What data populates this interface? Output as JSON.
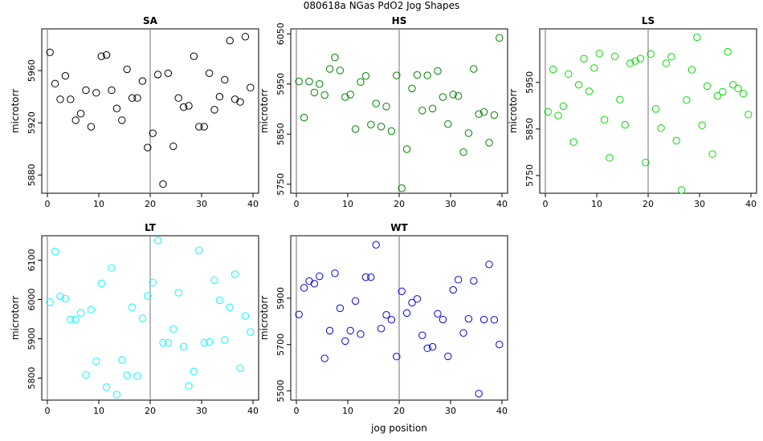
{
  "title": "080618a   NGas PdO2 Jog Shapes",
  "xlabel": "jog position",
  "chart_data": [
    {
      "type": "scatter",
      "title": "SA",
      "ylabel": "microtorr",
      "color": "#000000",
      "xlim": [
        0,
        40
      ],
      "ylim": [
        5866,
        5992
      ],
      "xticks": [
        0,
        10,
        20,
        30,
        40
      ],
      "yticks": [
        5880,
        5920,
        5960
      ],
      "vlines": [
        0,
        20
      ],
      "x": [
        0.5,
        1.5,
        2.5,
        3.5,
        4.5,
        5.5,
        6.5,
        7.5,
        8.5,
        9.5,
        10.5,
        11.5,
        12.5,
        13.5,
        14.5,
        15.5,
        16.5,
        17.5,
        18.5,
        19.5,
        20.5,
        21.5,
        22.5,
        23.5,
        24.5,
        25.5,
        26.5,
        27.5,
        28.5,
        29.5,
        30.5,
        31.5,
        32.5,
        33.5,
        34.5,
        35.5,
        36.5,
        37.5,
        38.5,
        39.5
      ],
      "y": [
        5974,
        5950,
        5938,
        5956,
        5938,
        5922,
        5927,
        5945,
        5917,
        5943,
        5971,
        5972,
        5945,
        5931,
        5922,
        5961,
        5939,
        5939,
        5952,
        5901,
        5912,
        5957,
        5873,
        5958,
        5902,
        5939,
        5932,
        5933,
        5971,
        5917,
        5917,
        5958,
        5930,
        5940,
        5953,
        5983,
        5938,
        5936,
        5986,
        5947
      ]
    },
    {
      "type": "scatter",
      "title": "HS",
      "ylabel": "microtorr",
      "color": "#008000",
      "xlim": [
        0,
        40
      ],
      "ylim": [
        5732,
        6060
      ],
      "xticks": [
        0,
        10,
        20,
        30,
        40
      ],
      "yticks": [
        5750,
        5850,
        5950,
        6050
      ],
      "vlines": [
        0,
        20
      ],
      "x": [
        0.5,
        1.5,
        2.5,
        3.5,
        4.5,
        5.5,
        6.5,
        7.5,
        8.5,
        9.5,
        10.5,
        11.5,
        12.5,
        13.5,
        14.5,
        15.5,
        16.5,
        17.5,
        18.5,
        19.5,
        20.5,
        21.5,
        22.5,
        23.5,
        24.5,
        25.5,
        26.5,
        27.5,
        28.5,
        29.5,
        30.5,
        31.5,
        32.5,
        33.5,
        34.5,
        35.5,
        36.5,
        37.5,
        38.5,
        39.5
      ],
      "y": [
        5955,
        5883,
        5955,
        5933,
        5950,
        5928,
        5980,
        6003,
        5977,
        5924,
        5929,
        5860,
        5954,
        5966,
        5869,
        5911,
        5865,
        5905,
        5856,
        5967,
        5742,
        5820,
        5941,
        5968,
        5897,
        5967,
        5901,
        5976,
        5924,
        5870,
        5929,
        5926,
        5814,
        5852,
        5980,
        5890,
        5894,
        5833,
        5888,
        6042
      ]
    },
    {
      "type": "scatter",
      "title": "LS",
      "ylabel": "microtorr",
      "color": "#00dd00",
      "xlim": [
        0,
        40
      ],
      "ylim": [
        5712,
        6065
      ],
      "xticks": [
        0,
        10,
        20,
        30,
        40
      ],
      "yticks": [
        5750,
        5850,
        5950
      ],
      "vlines": [
        0,
        20
      ],
      "x": [
        0.5,
        1.5,
        2.5,
        3.5,
        4.5,
        5.5,
        6.5,
        7.5,
        8.5,
        9.5,
        10.5,
        11.5,
        12.5,
        13.5,
        14.5,
        15.5,
        16.5,
        17.5,
        18.5,
        19.5,
        20.5,
        21.5,
        22.5,
        23.5,
        24.5,
        25.5,
        26.5,
        27.5,
        28.5,
        29.5,
        30.5,
        31.5,
        32.5,
        33.5,
        34.5,
        35.5,
        36.5,
        37.5,
        38.5,
        39.5
      ],
      "y": [
        5887,
        5978,
        5879,
        5899,
        5968,
        5822,
        5945,
        6001,
        5931,
        5981,
        6012,
        5870,
        5788,
        6006,
        5913,
        5859,
        5991,
        5996,
        6001,
        5778,
        6011,
        5893,
        5852,
        5991,
        6005,
        5825,
        5719,
        5912,
        5977,
        6047,
        5858,
        5942,
        5796,
        5921,
        5930,
        6016,
        5945,
        5937,
        5926,
        5881
      ]
    },
    {
      "type": "scatter",
      "title": "LT",
      "ylabel": "microtorr",
      "color": "#00ffff",
      "xlim": [
        0,
        40
      ],
      "ylim": [
        5744,
        6162
      ],
      "xticks": [
        0,
        10,
        20,
        30,
        40
      ],
      "yticks": [
        5800,
        5900,
        6000,
        6100
      ],
      "vlines": [
        0,
        20
      ],
      "x": [
        0.5,
        1.5,
        2.5,
        3.5,
        4.5,
        5.5,
        6.5,
        7.5,
        8.5,
        9.5,
        10.5,
        11.5,
        12.5,
        13.5,
        14.5,
        15.5,
        16.5,
        17.5,
        18.5,
        19.5,
        20.5,
        21.5,
        22.5,
        23.5,
        24.5,
        25.5,
        26.5,
        27.5,
        28.5,
        29.5,
        30.5,
        31.5,
        32.5,
        33.5,
        34.5,
        35.5,
        36.5,
        37.5,
        38.5,
        39.5
      ],
      "y": [
        5993,
        6122,
        6008,
        6002,
        5949,
        5949,
        5966,
        5808,
        5974,
        5843,
        6041,
        5777,
        6080,
        5758,
        5846,
        5807,
        5980,
        5805,
        5952,
        6009,
        6043,
        6150,
        5890,
        5890,
        5925,
        6017,
        5880,
        5780,
        5817,
        6125,
        5890,
        5892,
        6049,
        5998,
        5897,
        5980,
        6064,
        5825,
        5958,
        5917
      ]
    },
    {
      "type": "scatter",
      "title": "WT",
      "ylabel": "microtorr",
      "color": "#0000ee",
      "xlim": [
        0,
        40
      ],
      "ylim": [
        5460,
        6170
      ],
      "xticks": [
        0,
        10,
        20,
        30,
        40
      ],
      "yticks": [
        5500,
        5700,
        5900
      ],
      "vlines": [
        0,
        20
      ],
      "x": [
        0.5,
        1.5,
        2.5,
        3.5,
        4.5,
        5.5,
        6.5,
        7.5,
        8.5,
        9.5,
        10.5,
        11.5,
        12.5,
        13.5,
        14.5,
        15.5,
        16.5,
        17.5,
        18.5,
        19.5,
        20.5,
        21.5,
        22.5,
        23.5,
        24.5,
        25.5,
        26.5,
        27.5,
        28.5,
        29.5,
        30.5,
        31.5,
        32.5,
        33.5,
        34.5,
        35.5,
        36.5,
        37.5,
        38.5,
        39.5
      ],
      "y": [
        5830,
        5945,
        5974,
        5963,
        5995,
        5640,
        5760,
        6008,
        5857,
        5715,
        5760,
        5888,
        5745,
        5991,
        5991,
        6131,
        5769,
        5828,
        5807,
        5648,
        5930,
        5836,
        5881,
        5897,
        5740,
        5684,
        5690,
        5833,
        5808,
        5649,
        5936,
        5980,
        5750,
        5811,
        5975,
        5488,
        5808,
        6046,
        5807,
        5700
      ]
    }
  ]
}
